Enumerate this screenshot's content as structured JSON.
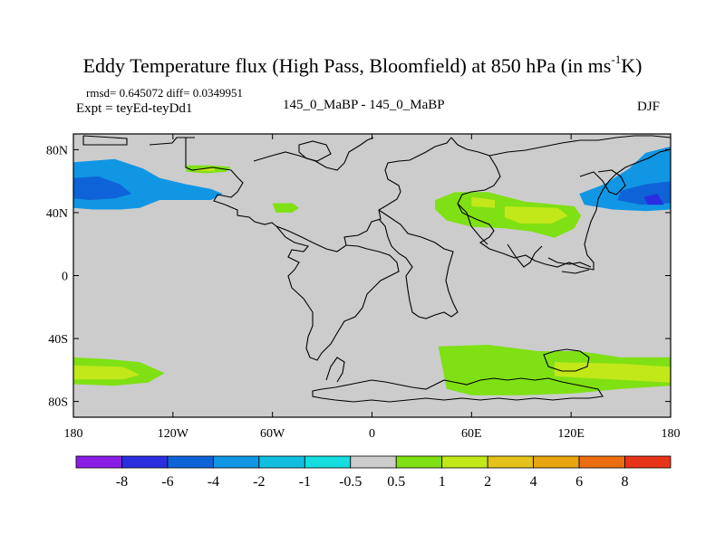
{
  "title": {
    "main": "Eddy Temperature flux (High Pass, Bloomfield) at 850 hPa (in ms",
    "sup": "-1",
    "end": "K)"
  },
  "subtitle": {
    "stats": "rmsd= 0.645072 diff= 0.0349951",
    "expt": "Expt = teyEd-teyDd1",
    "center": "145_0_MaBP - 145_0_MaBP",
    "season": "DJF"
  },
  "colors": {
    "land": "#cccccc",
    "coast": "#000000"
  },
  "chart_data": {
    "type": "heatmap",
    "projection": "cylindrical-equidistant",
    "xlim": [
      -180,
      180
    ],
    "ylim": [
      -90,
      90
    ],
    "x_ticks": [
      {
        "value": -180,
        "label": "180"
      },
      {
        "value": -120,
        "label": "120W"
      },
      {
        "value": -60,
        "label": "60W"
      },
      {
        "value": 0,
        "label": "0"
      },
      {
        "value": 60,
        "label": "60E"
      },
      {
        "value": 120,
        "label": "120E"
      },
      {
        "value": 180,
        "label": "180"
      }
    ],
    "y_ticks": [
      {
        "value": 80,
        "label": "80N"
      },
      {
        "value": 40,
        "label": "40N"
      },
      {
        "value": 0,
        "label": "0"
      },
      {
        "value": -40,
        "label": "40S"
      },
      {
        "value": -80,
        "label": "80S"
      }
    ],
    "colorbar": {
      "levels": [
        "-8",
        "-6",
        "-4",
        "-2",
        "-1",
        "-0.5",
        "0.5",
        "1",
        "2",
        "4",
        "6",
        "8"
      ],
      "colors": [
        "#8b1ee6",
        "#2a2ee0",
        "#0f63d8",
        "#1196e4",
        "#10bfe0",
        "#16dede",
        "#cccccc",
        "#7fe014",
        "#c2e81a",
        "#e3c21a",
        "#e8a510",
        "#ea6e10",
        "#e8351a"
      ]
    },
    "regions": [
      {
        "name": "north-pacific-west-band",
        "level": "-2",
        "polygon": [
          [
            -180,
            72
          ],
          [
            -155,
            74
          ],
          [
            -138,
            68
          ],
          [
            -128,
            62
          ],
          [
            -112,
            58
          ],
          [
            -97,
            55
          ],
          [
            -90,
            52
          ],
          [
            -97,
            48
          ],
          [
            -112,
            48
          ],
          [
            -128,
            48
          ],
          [
            -140,
            43
          ],
          [
            -152,
            42
          ],
          [
            -168,
            42
          ],
          [
            -180,
            43
          ]
        ]
      },
      {
        "name": "north-pacific-west-core",
        "level": "-4",
        "polygon": [
          [
            -180,
            62
          ],
          [
            -165,
            63
          ],
          [
            -152,
            58
          ],
          [
            -145,
            52
          ],
          [
            -155,
            49
          ],
          [
            -170,
            48
          ],
          [
            -180,
            49
          ]
        ]
      },
      {
        "name": "north-pacific-east-band",
        "level": "-2",
        "polygon": [
          [
            180,
            82
          ],
          [
            165,
            78
          ],
          [
            155,
            68
          ],
          [
            140,
            58
          ],
          [
            125,
            52
          ],
          [
            128,
            45
          ],
          [
            145,
            42
          ],
          [
            165,
            41
          ],
          [
            180,
            42
          ]
        ]
      },
      {
        "name": "north-pacific-east-core",
        "level": "-4",
        "polygon": [
          [
            180,
            60
          ],
          [
            165,
            58
          ],
          [
            150,
            54
          ],
          [
            148,
            48
          ],
          [
            162,
            45
          ],
          [
            180,
            46
          ]
        ]
      },
      {
        "name": "north-pacific-east-min",
        "level": "-6",
        "polygon": [
          [
            172,
            52
          ],
          [
            164,
            50
          ],
          [
            166,
            45
          ],
          [
            176,
            45
          ]
        ]
      },
      {
        "name": "alaska-pos",
        "level": "1",
        "polygon": [
          [
            -112,
            70
          ],
          [
            -97,
            70
          ],
          [
            -85,
            69
          ],
          [
            -88,
            66
          ],
          [
            -100,
            65
          ],
          [
            -112,
            66
          ]
        ]
      },
      {
        "name": "alaska-core",
        "level": "2",
        "polygon": [
          [
            -106,
            68
          ],
          [
            -95,
            68.5
          ],
          [
            -95,
            66.5
          ],
          [
            -106,
            66.5
          ]
        ]
      },
      {
        "name": "central-asia-pos",
        "level": "1",
        "polygon": [
          [
            38,
            48
          ],
          [
            50,
            53
          ],
          [
            70,
            53
          ],
          [
            92,
            47
          ],
          [
            112,
            45
          ],
          [
            122,
            44
          ],
          [
            126,
            38
          ],
          [
            122,
            30
          ],
          [
            110,
            24
          ],
          [
            96,
            28
          ],
          [
            80,
            30
          ],
          [
            60,
            31
          ],
          [
            45,
            35
          ],
          [
            38,
            42
          ]
        ]
      },
      {
        "name": "central-asia-core",
        "level": "2",
        "polygon": [
          [
            60,
            50
          ],
          [
            74,
            48
          ],
          [
            74,
            43
          ],
          [
            60,
            44
          ]
        ]
      },
      {
        "name": "east-asia-core",
        "level": "2",
        "polygon": [
          [
            80,
            44
          ],
          [
            112,
            43
          ],
          [
            118,
            38
          ],
          [
            108,
            33
          ],
          [
            90,
            33
          ],
          [
            80,
            37
          ]
        ]
      },
      {
        "name": "north-america-pos",
        "level": "1",
        "polygon": [
          [
            -60,
            46
          ],
          [
            -48,
            46
          ],
          [
            -44,
            43
          ],
          [
            -48,
            40
          ],
          [
            -58,
            40
          ]
        ]
      },
      {
        "name": "southern-ocean-atlantic",
        "level": "1",
        "polygon": [
          [
            -180,
            -52
          ],
          [
            -160,
            -53
          ],
          [
            -140,
            -55
          ],
          [
            -125,
            -62
          ],
          [
            -135,
            -68
          ],
          [
            -155,
            -70
          ],
          [
            -180,
            -69
          ]
        ]
      },
      {
        "name": "southern-ocean-atlantic-core",
        "level": "2",
        "polygon": [
          [
            -180,
            -57
          ],
          [
            -150,
            -58
          ],
          [
            -140,
            -63
          ],
          [
            -150,
            -66
          ],
          [
            -180,
            -66
          ]
        ]
      },
      {
        "name": "southern-ocean-indian",
        "level": "1",
        "polygon": [
          [
            40,
            -45
          ],
          [
            70,
            -44
          ],
          [
            100,
            -48
          ],
          [
            125,
            -48
          ],
          [
            150,
            -52
          ],
          [
            180,
            -52
          ],
          [
            180,
            -70
          ],
          [
            150,
            -72
          ],
          [
            120,
            -75
          ],
          [
            90,
            -76
          ],
          [
            60,
            -76
          ],
          [
            45,
            -72
          ]
        ]
      },
      {
        "name": "southern-ocean-indian-core",
        "level": "2",
        "polygon": [
          [
            110,
            -55
          ],
          [
            150,
            -56
          ],
          [
            180,
            -58
          ],
          [
            180,
            -68
          ],
          [
            145,
            -66
          ],
          [
            110,
            -64
          ]
        ]
      }
    ]
  }
}
